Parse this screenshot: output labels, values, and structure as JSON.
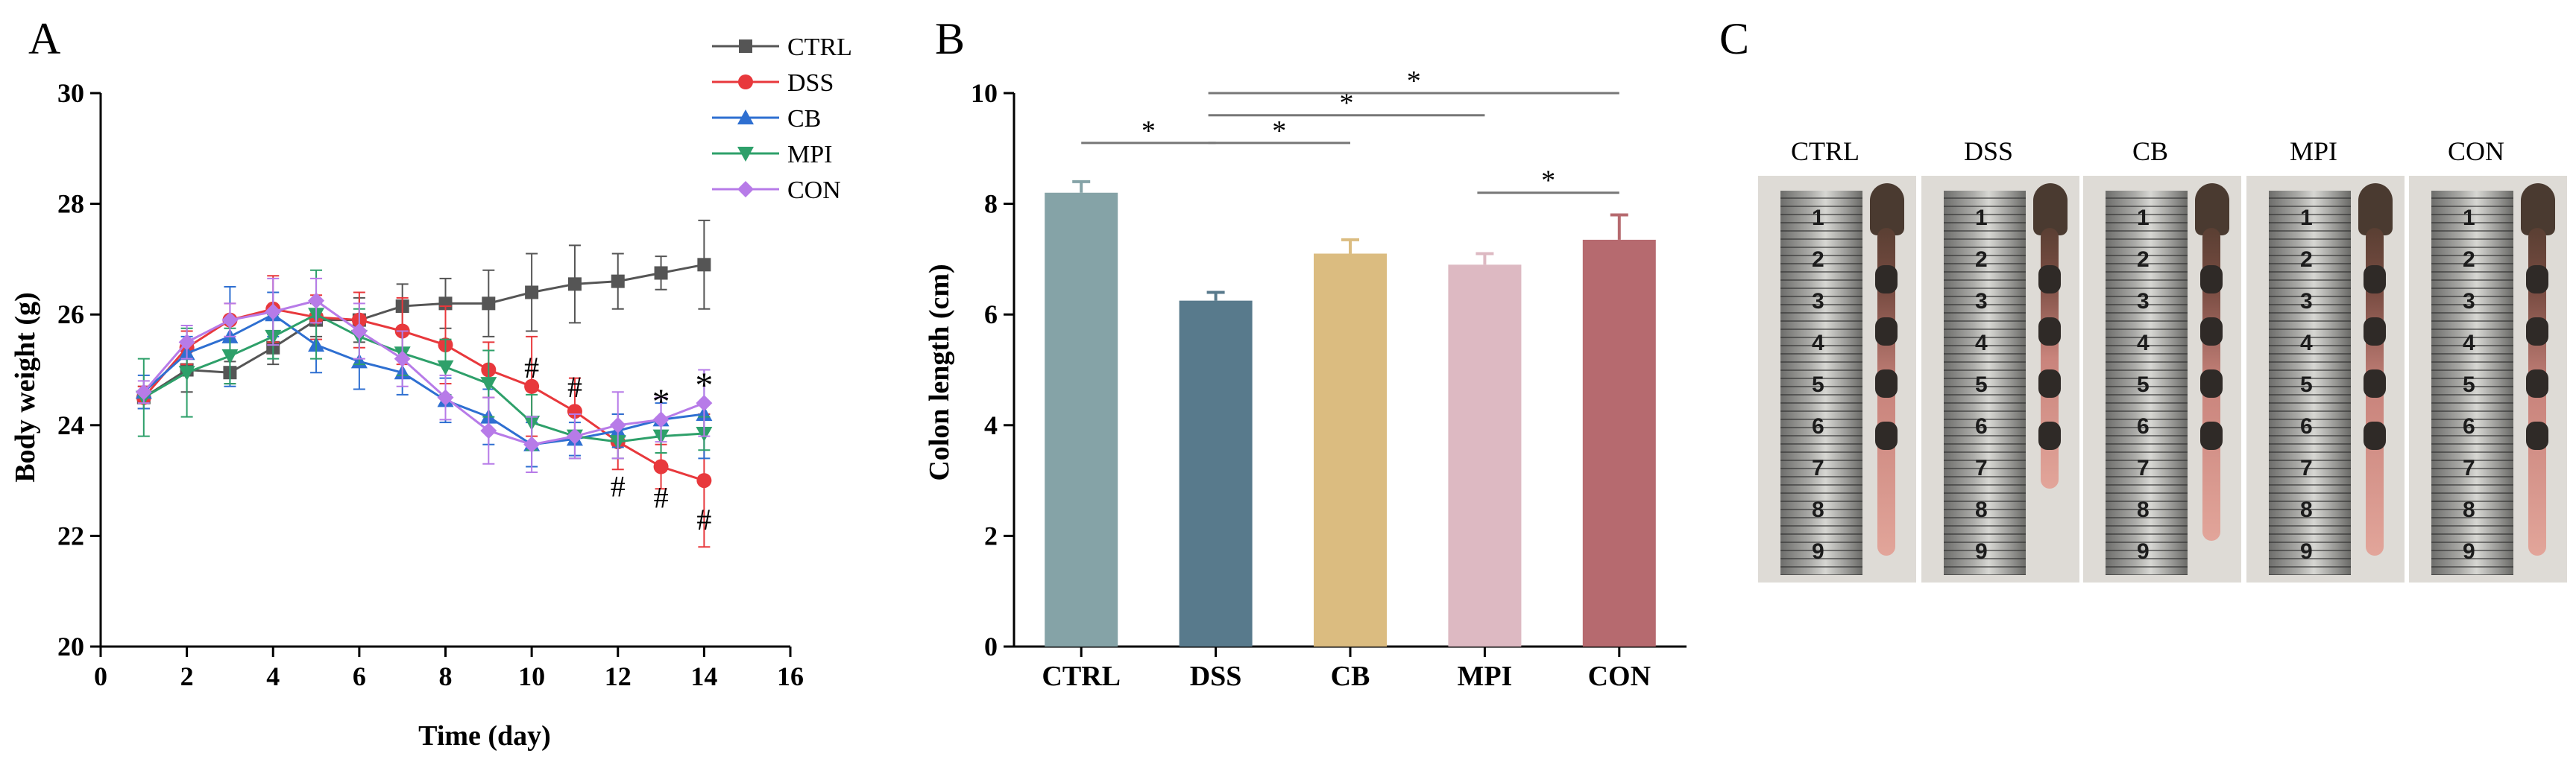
{
  "panel_labels": {
    "a": "A",
    "b": "B",
    "c": "C"
  },
  "chart_data": [
    {
      "type": "line",
      "xlabel": "Time (day)",
      "ylabel": "Body weight (g)",
      "xlim": [
        0,
        16
      ],
      "ylim": [
        20,
        30
      ],
      "xticks": [
        "0",
        "2",
        "4",
        "6",
        "8",
        "10",
        "12",
        "14",
        "16"
      ],
      "yticks": [
        "20",
        "22",
        "24",
        "26",
        "28",
        "30"
      ],
      "legend_position": "top-right",
      "x": [
        1,
        2,
        3,
        4,
        5,
        6,
        7,
        8,
        9,
        10,
        11,
        12,
        13,
        14
      ],
      "series": [
        {
          "name": "CTRL",
          "color": "#555555",
          "marker": "square",
          "values": [
            24.5,
            25.0,
            24.95,
            25.4,
            25.9,
            25.9,
            26.15,
            26.2,
            26.2,
            26.4,
            26.55,
            26.6,
            26.75,
            26.9
          ],
          "errors": [
            0.2,
            0.4,
            0.2,
            0.3,
            0.3,
            0.4,
            0.4,
            0.45,
            0.6,
            0.7,
            0.7,
            0.5,
            0.3,
            0.8
          ]
        },
        {
          "name": "DSS",
          "color": "#e8383c",
          "marker": "circle",
          "values": [
            24.5,
            25.4,
            25.9,
            26.1,
            25.95,
            25.9,
            25.7,
            25.45,
            25.0,
            24.7,
            24.25,
            23.7,
            23.25,
            23.0
          ],
          "errors": [
            0.2,
            0.3,
            0.3,
            0.6,
            0.4,
            0.5,
            0.6,
            0.7,
            0.5,
            0.9,
            0.6,
            0.5,
            0.4,
            1.2
          ]
        },
        {
          "name": "CB",
          "color": "#2e6fd1",
          "marker": "triangle-up",
          "values": [
            24.6,
            25.3,
            25.6,
            26.0,
            25.45,
            25.15,
            24.95,
            24.45,
            24.15,
            23.65,
            23.75,
            23.9,
            24.1,
            24.2
          ],
          "errors": [
            0.3,
            0.3,
            0.9,
            0.4,
            0.5,
            0.5,
            0.4,
            0.4,
            0.5,
            0.4,
            0.3,
            0.3,
            0.3,
            0.8
          ]
        },
        {
          "name": "MPI",
          "color": "#2ea06a",
          "marker": "triangle-down",
          "values": [
            24.5,
            24.95,
            25.25,
            25.6,
            26.0,
            25.6,
            25.3,
            25.05,
            24.75,
            24.05,
            23.8,
            23.7,
            23.8,
            23.85
          ],
          "errors": [
            0.7,
            0.8,
            0.5,
            0.4,
            0.8,
            0.5,
            0.4,
            0.5,
            0.6,
            0.5,
            0.4,
            0.3,
            0.3,
            0.3
          ]
        },
        {
          "name": "CON",
          "color": "#b77be8",
          "marker": "diamond",
          "values": [
            24.6,
            25.5,
            25.9,
            26.05,
            26.25,
            25.7,
            25.2,
            24.5,
            23.9,
            23.65,
            23.8,
            24.0,
            24.1,
            24.4
          ],
          "errors": [
            0.2,
            0.3,
            0.3,
            0.6,
            0.4,
            0.5,
            0.5,
            0.4,
            0.6,
            0.5,
            0.4,
            0.6,
            0.4,
            0.6
          ]
        }
      ],
      "annotations": [
        {
          "text": "#",
          "x": 10,
          "y": 25.05
        },
        {
          "text": "#",
          "x": 11,
          "y": 24.7
        },
        {
          "text": "#",
          "x": 12,
          "y": 22.9
        },
        {
          "text": "#",
          "x": 13,
          "y": 22.7
        },
        {
          "text": "#",
          "x": 14,
          "y": 22.3
        },
        {
          "text": "*",
          "x": 13,
          "y": 24.4
        },
        {
          "text": "*",
          "x": 14,
          "y": 24.7
        }
      ]
    },
    {
      "type": "bar",
      "ylabel": "Colon length (cm)",
      "ylim": [
        0,
        10
      ],
      "yticks": [
        "0",
        "2",
        "4",
        "6",
        "8",
        "10"
      ],
      "categories": [
        "CTRL",
        "DSS",
        "CB",
        "MPI",
        "CON"
      ],
      "values": [
        8.2,
        6.25,
        7.1,
        6.9,
        7.35
      ],
      "errors": [
        0.2,
        0.15,
        0.25,
        0.2,
        0.45
      ],
      "colors": [
        "#85a3a7",
        "#587a8c",
        "#dbbc80",
        "#ddb9c2",
        "#b66a6f"
      ],
      "significance": [
        {
          "from": 0,
          "to": 1,
          "label": "*",
          "level": 9.1
        },
        {
          "from": 1,
          "to": 2,
          "label": "*",
          "level": 9.1
        },
        {
          "from": 1,
          "to": 3,
          "label": "*",
          "level": 9.6
        },
        {
          "from": 1,
          "to": 4,
          "label": "*",
          "level": 10.0
        },
        {
          "from": 3,
          "to": 4,
          "label": "*",
          "level": 8.2
        }
      ]
    }
  ],
  "photo_panel": {
    "labels": [
      "CTRL",
      "DSS",
      "CB",
      "MPI",
      "CON"
    ],
    "ruler_numbers": [
      "1",
      "2",
      "3",
      "4",
      "5",
      "6",
      "7",
      "8",
      "9"
    ]
  }
}
